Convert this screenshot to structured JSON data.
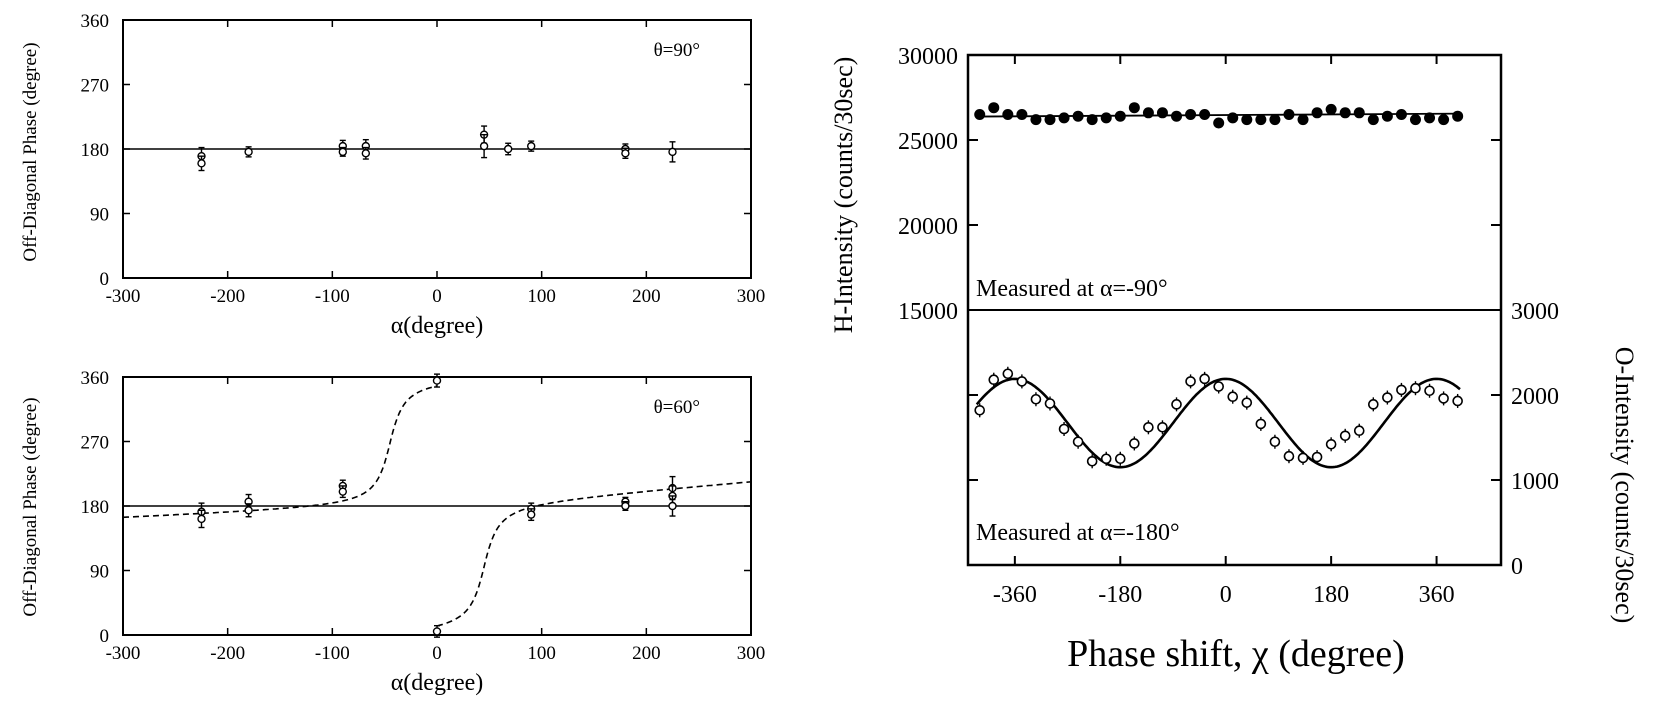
{
  "chart_data": [
    {
      "id": "top-left",
      "type": "scatter",
      "annotation": "θ=90°",
      "xlabel": "α(degree)",
      "ylabel": "Off-Diagonal Phase (degree)",
      "xlim": [
        -300,
        300
      ],
      "ylim": [
        0,
        360
      ],
      "xticks": [
        -300,
        -200,
        -100,
        0,
        100,
        200,
        300
      ],
      "yticks": [
        0,
        90,
        180,
        270,
        360
      ],
      "reference_line": 180,
      "points": [
        {
          "x": -225,
          "y": 170,
          "err": 12
        },
        {
          "x": -225,
          "y": 160,
          "err": 10
        },
        {
          "x": -180,
          "y": 176,
          "err": 7
        },
        {
          "x": -90,
          "y": 184,
          "err": 8
        },
        {
          "x": -90,
          "y": 176,
          "err": 6
        },
        {
          "x": -68,
          "y": 184,
          "err": 9
        },
        {
          "x": -68,
          "y": 174,
          "err": 8
        },
        {
          "x": 45,
          "y": 200,
          "err": 12
        },
        {
          "x": 45,
          "y": 184,
          "err": 16
        },
        {
          "x": 68,
          "y": 180,
          "err": 8
        },
        {
          "x": 90,
          "y": 184,
          "err": 7
        },
        {
          "x": 180,
          "y": 180,
          "err": 7
        },
        {
          "x": 180,
          "y": 174,
          "err": 7
        },
        {
          "x": 225,
          "y": 176,
          "err": 14
        }
      ]
    },
    {
      "id": "bottom-left",
      "type": "scatter",
      "annotation": "θ=60°",
      "xlabel": "α(degree)",
      "ylabel": "Off-Diagonal Phase (degree)",
      "xlim": [
        -300,
        300
      ],
      "ylim": [
        0,
        360
      ],
      "xticks": [
        -300,
        -200,
        -100,
        0,
        100,
        200,
        300
      ],
      "yticks": [
        0,
        90,
        180,
        270,
        360
      ],
      "reference_line": 180,
      "theory": {
        "branch": 180,
        "amp": 180,
        "width": 12
      },
      "points": [
        {
          "x": -225,
          "y": 172,
          "err": 12
        },
        {
          "x": -225,
          "y": 162,
          "err": 12
        },
        {
          "x": -180,
          "y": 186,
          "err": 10
        },
        {
          "x": -180,
          "y": 174,
          "err": 9
        },
        {
          "x": -90,
          "y": 208,
          "err": 8
        },
        {
          "x": -90,
          "y": 200,
          "err": 8
        },
        {
          "x": 0,
          "y": 355,
          "err": 9
        },
        {
          "x": 0,
          "y": 5,
          "err": 8
        },
        {
          "x": 90,
          "y": 176,
          "err": 8
        },
        {
          "x": 90,
          "y": 168,
          "err": 8
        },
        {
          "x": 180,
          "y": 186,
          "err": 6
        },
        {
          "x": 180,
          "y": 180,
          "err": 6
        },
        {
          "x": 225,
          "y": 205,
          "err": 16
        },
        {
          "x": 225,
          "y": 194,
          "err": 14
        },
        {
          "x": 225,
          "y": 180,
          "err": 14
        }
      ]
    },
    {
      "id": "right",
      "type": "scatter",
      "xlabel": "Phase shift, χ (degree)",
      "ylabel_left": "H-Intensity (counts/30sec)",
      "ylabel_right": "O-Intensity (counts/30sec)",
      "xlim": [
        -440,
        470
      ],
      "xticks": [
        -360,
        -180,
        0,
        180,
        360
      ],
      "upper_panel": {
        "annotation": "Measured at α=-90°",
        "ylim": [
          15000,
          30000
        ],
        "yticks": [
          15000,
          20000,
          25000,
          30000
        ],
        "fit_line": [
          26380,
          26550
        ],
        "x": [
          -420,
          -396,
          -372,
          -348,
          -324,
          -300,
          -276,
          -252,
          -228,
          -204,
          -180,
          -156,
          -132,
          -108,
          -84,
          -60,
          -36,
          -12,
          12,
          36,
          60,
          84,
          108,
          132,
          156,
          180,
          204,
          228,
          252,
          276,
          300,
          324,
          348,
          372,
          396
        ],
        "values": [
          26500,
          26900,
          26500,
          26500,
          26200,
          26200,
          26300,
          26400,
          26200,
          26300,
          26400,
          26900,
          26600,
          26600,
          26400,
          26500,
          26500,
          26000,
          26300,
          26200,
          26200,
          26200,
          26500,
          26200,
          26600,
          26800,
          26600,
          26600,
          26200,
          26400,
          26500,
          26200,
          26300,
          26200,
          26400
        ]
      },
      "lower_panel": {
        "annotation": "Measured at α=-180°",
        "ylim": [
          0,
          3000
        ],
        "yticks": [
          0,
          1000,
          2000,
          3000
        ],
        "fit": {
          "mean": 1670,
          "amp": 520,
          "period": 360,
          "phase": 0
        },
        "x": [
          -420,
          -396,
          -372,
          -348,
          -324,
          -300,
          -276,
          -252,
          -228,
          -204,
          -180,
          -156,
          -132,
          -108,
          -84,
          -60,
          -36,
          -12,
          12,
          36,
          60,
          84,
          108,
          132,
          156,
          180,
          204,
          228,
          252,
          276,
          300,
          324,
          348,
          372,
          396
        ],
        "values": [
          1820,
          2180,
          2250,
          2160,
          1950,
          1900,
          1600,
          1450,
          1220,
          1250,
          1250,
          1430,
          1620,
          1620,
          1890,
          2160,
          2190,
          2100,
          1980,
          1910,
          1660,
          1450,
          1280,
          1260,
          1270,
          1420,
          1520,
          1580,
          1890,
          1970,
          2060,
          2080,
          2050,
          1960,
          1930
        ]
      }
    }
  ]
}
